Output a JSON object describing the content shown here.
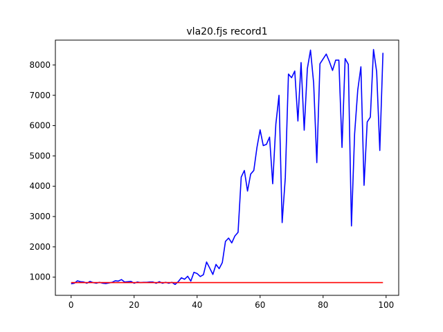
{
  "chart_data": {
    "type": "line",
    "title": "vla20.fjs   record1",
    "xlabel": "",
    "ylabel": "",
    "xlim": [
      -5,
      104
    ],
    "ylim": [
      400,
      8820
    ],
    "xticks": [
      0,
      20,
      40,
      60,
      80,
      100
    ],
    "yticks": [
      1000,
      2000,
      3000,
      4000,
      5000,
      6000,
      7000,
      8000
    ],
    "grid": false,
    "legend": "none",
    "series": [
      {
        "color": "#0000ff",
        "x": [
          0,
          1,
          2,
          3,
          4,
          5,
          6,
          7,
          8,
          9,
          10,
          11,
          12,
          13,
          14,
          15,
          16,
          17,
          18,
          19,
          20,
          21,
          22,
          23,
          24,
          25,
          26,
          27,
          28,
          29,
          30,
          31,
          32,
          33,
          34,
          35,
          36,
          37,
          38,
          39,
          40,
          41,
          42,
          43,
          44,
          45,
          46,
          47,
          48,
          49,
          50,
          51,
          52,
          53,
          54,
          55,
          56,
          57,
          58,
          59,
          60,
          61,
          62,
          63,
          64,
          65,
          66,
          67,
          68,
          69,
          70,
          71,
          72,
          73,
          74,
          75,
          76,
          77,
          78,
          79,
          80,
          81,
          82,
          83,
          84,
          85,
          86,
          87,
          88,
          89,
          90,
          91,
          92,
          93,
          94,
          95,
          96,
          97,
          98,
          99
        ],
        "y": [
          780,
          800,
          880,
          850,
          840,
          800,
          860,
          820,
          800,
          830,
          800,
          790,
          810,
          830,
          880,
          870,
          920,
          840,
          850,
          860,
          800,
          840,
          820,
          830,
          830,
          840,
          840,
          800,
          850,
          800,
          830,
          800,
          830,
          760,
          850,
          980,
          930,
          1030,
          870,
          1160,
          1120,
          1020,
          1080,
          1500,
          1300,
          1090,
          1420,
          1280,
          1480,
          2180,
          2290,
          2130,
          2360,
          2480,
          4300,
          4520,
          3840,
          4400,
          4520,
          5280,
          5860,
          5340,
          5380,
          5620,
          4080,
          6050,
          7000,
          2800,
          4280,
          7700,
          7580,
          7800,
          6150,
          8080,
          5850,
          7880,
          8490,
          7400,
          4780,
          8040,
          8200,
          8360,
          8110,
          7820,
          8160,
          8160,
          5280,
          8210,
          8020,
          2690,
          5720,
          7170,
          7940,
          4030,
          6120,
          6280,
          8510,
          7780,
          5180,
          8400
        ]
      },
      {
        "color": "#ff0000",
        "x": [
          0,
          99
        ],
        "y": [
          820,
          820
        ]
      }
    ]
  }
}
